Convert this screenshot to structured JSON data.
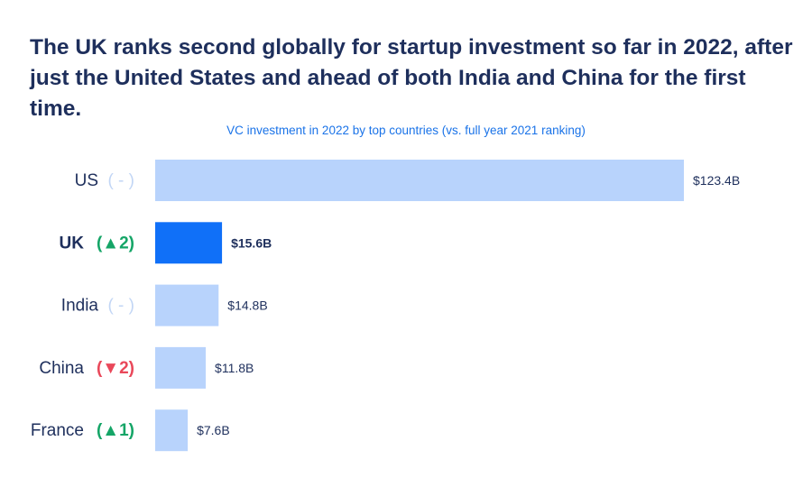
{
  "headline": "The UK ranks second globally for startup investment so far in 2022, after just the United States and ahead of both India and China for the first time.",
  "chart_data": {
    "type": "bar",
    "orientation": "horizontal",
    "title": "VC investment in 2022 by top countries (vs. full year 2021 ranking)",
    "categories": [
      "US",
      "UK",
      "India",
      "China",
      "France"
    ],
    "rank_change": [
      "( - )",
      "(▲2)",
      "( - )",
      "(▼2)",
      "(▲1)"
    ],
    "rank_change_direction": [
      "none",
      "up",
      "none",
      "down",
      "up"
    ],
    "values": [
      123.4,
      15.6,
      14.8,
      11.8,
      7.6
    ],
    "value_labels": [
      "$123.4B",
      "$15.6B",
      "$14.8B",
      "$11.8B",
      "$7.6B"
    ],
    "highlight": "UK",
    "unit": "billion USD",
    "grid": false,
    "colors": {
      "bar": "#b8d3fc",
      "highlight_bar": "#1070f8",
      "text": "#1e2f5c",
      "up": "#15a567",
      "down": "#e9485a",
      "none": "#c2d6f5"
    }
  }
}
